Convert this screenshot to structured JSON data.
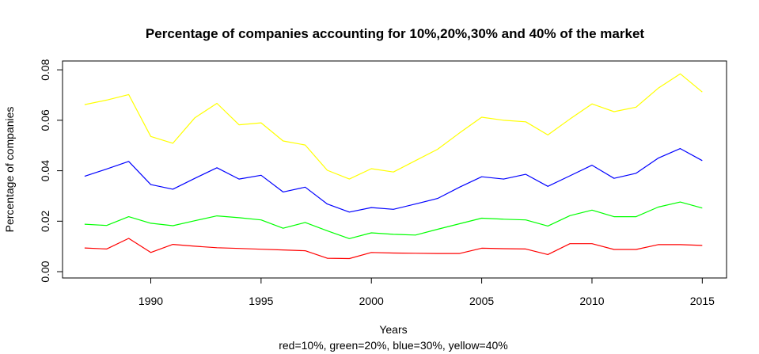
{
  "chart_data": {
    "type": "line",
    "title": "Percentage of companies accounting for 10%,20%,30% and 40% of the market",
    "xlabel": "Years",
    "subtitle": "red=10%, green=20%, blue=30%, yellow=40%",
    "ylabel": "Percentage of companies",
    "xlim": [
      1986.0,
      2016.1
    ],
    "ylim": [
      -0.0025,
      0.0835
    ],
    "xticks": [
      1990,
      1995,
      2000,
      2005,
      2010,
      2015
    ],
    "yticks": [
      0.0,
      0.02,
      0.04,
      0.06,
      0.08
    ],
    "ytick_labels": [
      "0.00",
      "0.02",
      "0.04",
      "0.06",
      "0.08"
    ],
    "grid": false,
    "x": [
      1987,
      1988,
      1989,
      1990,
      1991,
      1992,
      1993,
      1994,
      1995,
      1996,
      1997,
      1998,
      1999,
      2000,
      2001,
      2002,
      2003,
      2004,
      2005,
      2006,
      2007,
      2008,
      2009,
      2010,
      2011,
      2012,
      2013,
      2014,
      2015
    ],
    "series": [
      {
        "color": "#ff0000",
        "values": [
          0.0094,
          0.009,
          0.0132,
          0.0076,
          0.0108,
          0.0101,
          0.0095,
          0.0092,
          0.0089,
          0.0086,
          0.0083,
          0.0053,
          0.0052,
          0.0076,
          0.0074,
          0.0073,
          0.0072,
          0.0072,
          0.0093,
          0.0091,
          0.009,
          0.0068,
          0.0111,
          0.0111,
          0.0088,
          0.0088,
          0.0107,
          0.0107,
          0.0104
        ]
      },
      {
        "color": "#00ff00",
        "values": [
          0.0188,
          0.0183,
          0.0218,
          0.0192,
          0.0182,
          0.0202,
          0.0221,
          0.0214,
          0.0205,
          0.0172,
          0.0195,
          0.0162,
          0.0131,
          0.0154,
          0.0148,
          0.0145,
          0.0168,
          0.019,
          0.0212,
          0.0208,
          0.0205,
          0.0181,
          0.0222,
          0.0244,
          0.0218,
          0.0218,
          0.0256,
          0.0276,
          0.0252
        ]
      },
      {
        "color": "#0000ff",
        "values": [
          0.0378,
          0.0407,
          0.0437,
          0.0345,
          0.0327,
          0.037,
          0.0412,
          0.0367,
          0.0382,
          0.0316,
          0.0335,
          0.0268,
          0.0236,
          0.0254,
          0.0247,
          0.0268,
          0.029,
          0.0335,
          0.0376,
          0.0367,
          0.0386,
          0.0338,
          0.038,
          0.0422,
          0.037,
          0.039,
          0.045,
          0.0488,
          0.044
        ]
      },
      {
        "color": "#ffff00",
        "values": [
          0.0662,
          0.068,
          0.0702,
          0.0536,
          0.0509,
          0.061,
          0.0667,
          0.0582,
          0.059,
          0.0518,
          0.0502,
          0.0402,
          0.0367,
          0.0408,
          0.0395,
          0.044,
          0.0485,
          0.055,
          0.0612,
          0.06,
          0.0594,
          0.0542,
          0.0605,
          0.0665,
          0.0634,
          0.0652,
          0.0727,
          0.0784,
          0.0712
        ]
      }
    ]
  }
}
